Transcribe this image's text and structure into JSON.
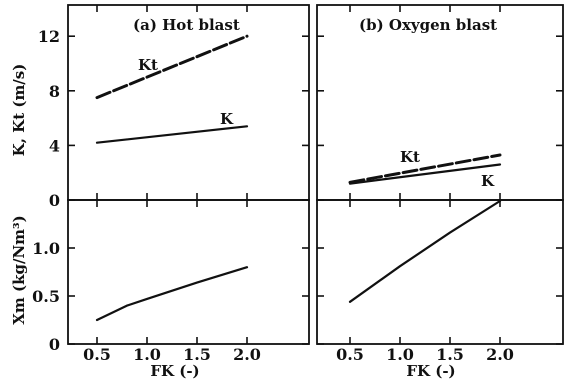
{
  "chart_data": [
    {
      "type": "line",
      "panel": "top-left",
      "title": "(a) Hot blast",
      "ylabel": "K, Kt (m/s)",
      "xlabel": "",
      "xlim": [
        0.25,
        2.2
      ],
      "ylim": [
        0,
        14
      ],
      "xticks": [
        0.5,
        1.0,
        1.5,
        2.0
      ],
      "yticks": [
        0,
        4,
        8,
        12
      ],
      "ytick_labels": [
        "0",
        "4",
        "8",
        "12"
      ],
      "series": [
        {
          "name": "Kt",
          "style": "dashed",
          "x": [
            0.5,
            2.0
          ],
          "y": [
            7.5,
            12.0
          ]
        },
        {
          "name": "K",
          "style": "solid",
          "x": [
            0.5,
            2.0
          ],
          "y": [
            4.2,
            5.4
          ]
        }
      ],
      "series_label_text": {
        "Kt": "Kt",
        "K": "K"
      }
    },
    {
      "type": "line",
      "panel": "top-right",
      "title": "(b) Oxygen blast",
      "xlim": [
        0.25,
        2.2
      ],
      "ylim": [
        0,
        14
      ],
      "series": [
        {
          "name": "Kt",
          "style": "dashed",
          "x": [
            0.5,
            2.0
          ],
          "y": [
            1.3,
            3.3
          ]
        },
        {
          "name": "K",
          "style": "solid",
          "x": [
            0.5,
            2.0
          ],
          "y": [
            1.2,
            2.6
          ]
        }
      ],
      "series_label_text": {
        "Kt": "Kt",
        "K": "K"
      }
    },
    {
      "type": "line",
      "panel": "bottom-left",
      "ylabel": "Xm (kg/Nm³)",
      "xlabel": "FK (-)",
      "xlim": [
        0.25,
        2.2
      ],
      "ylim": [
        0,
        1.5
      ],
      "xticks": [
        0.5,
        1.0,
        1.5,
        2.0
      ],
      "xtick_labels": [
        "0.5",
        "1.0",
        "1.5",
        "2.0"
      ],
      "yticks": [
        0,
        0.5,
        1.0
      ],
      "ytick_labels": [
        "0",
        "0.5",
        "1.0"
      ],
      "series": [
        {
          "name": "Xm",
          "style": "solid",
          "x": [
            0.5,
            0.8,
            1.0,
            1.5,
            2.0
          ],
          "y": [
            0.25,
            0.4,
            0.47,
            0.64,
            0.8
          ]
        }
      ]
    },
    {
      "type": "line",
      "panel": "bottom-right",
      "xlabel": "FK (-)",
      "xlim": [
        0.25,
        2.2
      ],
      "ylim": [
        0,
        1.5
      ],
      "xticks": [
        0.5,
        1.0,
        1.5,
        2.0
      ],
      "xtick_labels": [
        "0.5",
        "1.0",
        "1.5",
        "2.0"
      ],
      "series": [
        {
          "name": "Xm",
          "style": "solid",
          "x": [
            0.5,
            1.0,
            1.5,
            2.0
          ],
          "y": [
            0.44,
            0.81,
            1.16,
            1.49
          ]
        }
      ]
    }
  ]
}
